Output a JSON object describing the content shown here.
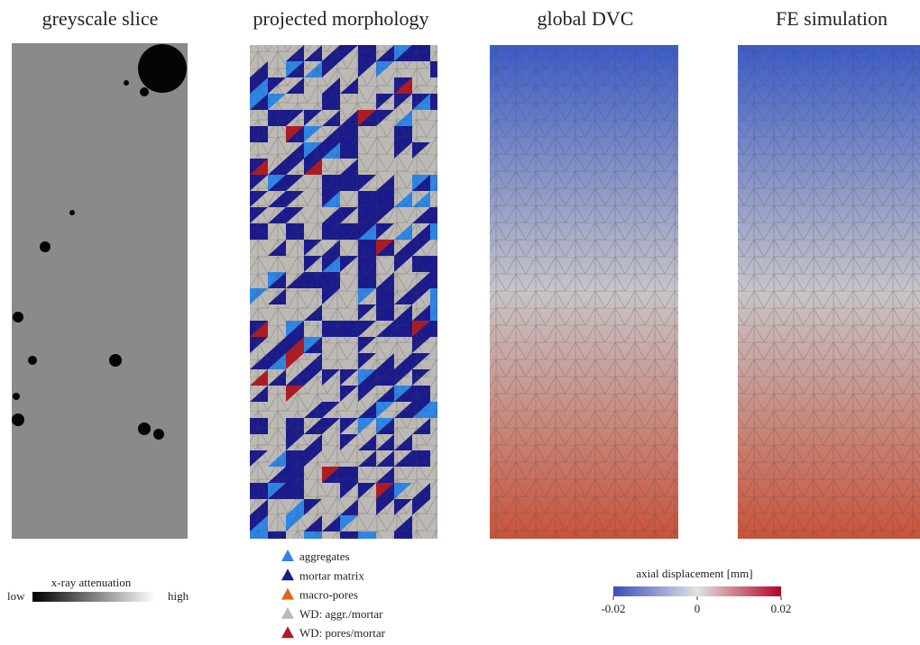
{
  "panels": [
    {
      "title": "greyscale slice"
    },
    {
      "title": "projected morphology"
    },
    {
      "title": "global DVC"
    },
    {
      "title": "FE simulation"
    }
  ],
  "attenuation_bar": {
    "label": "x-ray attenuation",
    "low": "low",
    "high": "high"
  },
  "legend": {
    "items": [
      {
        "label": "aggregates",
        "color": "#2f86e6"
      },
      {
        "label": "mortar matrix",
        "color": "#1a1a8c"
      },
      {
        "label": "macro-pores",
        "color": "#e0661a"
      },
      {
        "label": "WD: aggr./mortar",
        "color": "#bdbab5"
      },
      {
        "label": "WD: pores/mortar",
        "color": "#b01a22"
      }
    ]
  },
  "displacement_bar": {
    "label": "axial displacement [mm]",
    "range": [
      -0.02,
      0.02
    ],
    "ticks": [
      -0.02,
      0,
      0.02
    ]
  }
}
